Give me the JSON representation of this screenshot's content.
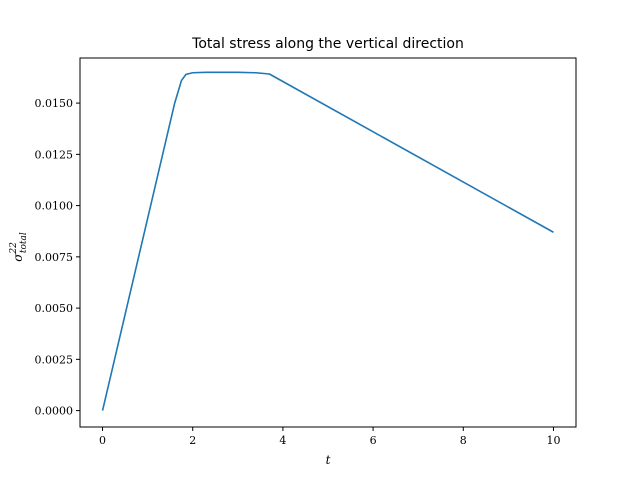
{
  "chart_data": {
    "type": "line",
    "title": "Total stress along the vertical direction",
    "xlabel": "t",
    "ylabel": {
      "base": "σ",
      "sup": "22",
      "sub": "total"
    },
    "xlim": [
      -0.5,
      10.5
    ],
    "ylim": [
      -0.0008,
      0.0172
    ],
    "xticks": [
      0,
      2,
      4,
      6,
      8,
      10
    ],
    "xtick_labels": [
      "0",
      "2",
      "4",
      "6",
      "8",
      "10"
    ],
    "yticks": [
      0,
      0.0025,
      0.005,
      0.0075,
      0.01,
      0.0125,
      0.015
    ],
    "ytick_labels": [
      "0.0000",
      "0.0025",
      "0.0050",
      "0.0075",
      "0.0100",
      "0.0125",
      "0.0150"
    ],
    "grid": false,
    "series": [
      {
        "color": "#1f77b4",
        "x": [
          0,
          1.6,
          1.75,
          1.85,
          2.0,
          2.3,
          3.0,
          3.4,
          3.7,
          10
        ],
        "y": [
          0,
          0.015,
          0.0161,
          0.0164,
          0.01648,
          0.0165,
          0.0165,
          0.01648,
          0.01642,
          0.0087
        ]
      }
    ]
  }
}
